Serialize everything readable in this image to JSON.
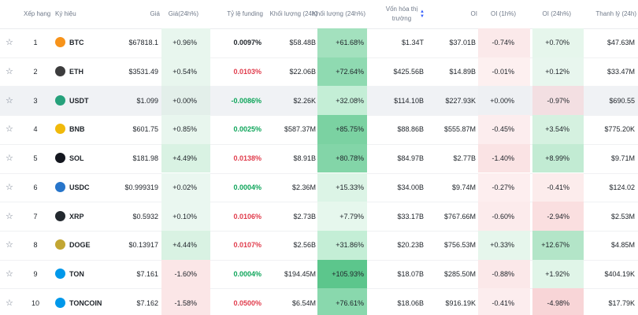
{
  "headers": [
    "Xếp hạng",
    "Ký hiệu",
    "Giá",
    "Giá(24h%)",
    "Tỷ lệ funding",
    "Khối lượng (24h)",
    "Khối lượng (24h%)",
    "Vốn hóa thị trường",
    "OI",
    "OI (1h%)",
    "OI (24h%)",
    "Thanh lý (24h)"
  ],
  "rows": [
    {
      "rank": "1",
      "symbol": "BTC",
      "icon_color": "#f7931a",
      "price": "$67818.1",
      "price_24h": "+0.96%",
      "funding": "0.0097%",
      "funding_color": "#1e2329",
      "volume": "$58.48B",
      "volume_24h": "+61.68%",
      "market_cap": "$1.34T",
      "oi": "$37.01B",
      "oi_1h": "-0.74%",
      "oi_24h": "+0.70%",
      "liquidation": "$47.63M",
      "heat": {
        "price_24h": "#e8f6ee",
        "volume_24h": "#a3e1be",
        "oi_1h": "#fbe9ea",
        "oi_24h": "#e6f6ec"
      }
    },
    {
      "rank": "2",
      "symbol": "ETH",
      "icon_color": "#3c3c3d",
      "price": "$3531.49",
      "price_24h": "+0.54%",
      "funding": "0.0103%",
      "funding_color": "#e03c4c",
      "volume": "$22.06B",
      "volume_24h": "+72.64%",
      "market_cap": "$425.56B",
      "oi": "$14.89B",
      "oi_1h": "-0.01%",
      "oi_24h": "+0.12%",
      "liquidation": "$33.47M",
      "heat": {
        "price_24h": "#e8f6ee",
        "volume_24h": "#8fdab1",
        "oi_1h": "#fdf0f0",
        "oi_24h": "#e8f6ee"
      }
    },
    {
      "rank": "3",
      "symbol": "USDT",
      "icon_color": "#26a17b",
      "price": "$1.099",
      "price_24h": "+0.00%",
      "funding": "-0.0086%",
      "funding_color": "#0ea55a",
      "volume": "$2.26K",
      "volume_24h": "+32.08%",
      "market_cap": "$114.10B",
      "oi": "$227.93K",
      "oi_1h": "+0.00%",
      "oi_24h": "-0.97%",
      "liquidation": "$690.55",
      "heat": {
        "price_24h": "#e3efea",
        "volume_24h": "#c4eed6",
        "oi_1h": "#eef0f3",
        "oi_24h": "#f3dfe2"
      }
    },
    {
      "rank": "4",
      "symbol": "BNB",
      "icon_color": "#f0b90b",
      "price": "$601.75",
      "price_24h": "+0.85%",
      "funding": "0.0025%",
      "funding_color": "#0ea55a",
      "volume": "$587.37M",
      "volume_24h": "+85.75%",
      "market_cap": "$88.86B",
      "oi": "$555.87M",
      "oi_1h": "-0.45%",
      "oi_24h": "+3.54%",
      "liquidation": "$775.20K",
      "heat": {
        "price_24h": "#e8f6ee",
        "volume_24h": "#7bd2a2",
        "oi_1h": "#fcedee",
        "oi_24h": "#d5f1e0"
      }
    },
    {
      "rank": "5",
      "symbol": "SOL",
      "icon_color": "#14171f",
      "price": "$181.98",
      "price_24h": "+4.49%",
      "funding": "0.0138%",
      "funding_color": "#e03c4c",
      "volume": "$8.91B",
      "volume_24h": "+80.78%",
      "market_cap": "$84.97B",
      "oi": "$2.77B",
      "oi_1h": "-1.40%",
      "oi_24h": "+8.99%",
      "liquidation": "$9.71M",
      "heat": {
        "price_24h": "#d9f2e3",
        "volume_24h": "#83d5a8",
        "oi_1h": "#fae3e4",
        "oi_24h": "#c2ebd3"
      }
    },
    {
      "rank": "6",
      "symbol": "USDC",
      "icon_color": "#2775ca",
      "price": "$0.999319",
      "price_24h": "+0.02%",
      "funding": "0.0004%",
      "funding_color": "#0ea55a",
      "volume": "$2.36M",
      "volume_24h": "+15.33%",
      "market_cap": "$34.00B",
      "oi": "$9.74M",
      "oi_1h": "-0.27%",
      "oi_24h": "-0.41%",
      "liquidation": "$124.02",
      "heat": {
        "price_24h": "#eaf7f0",
        "volume_24h": "#dcf4e6",
        "oi_1h": "#fdeeef",
        "oi_24h": "#fcecec"
      }
    },
    {
      "rank": "7",
      "symbol": "XRP",
      "icon_color": "#23292f",
      "price": "$0.5932",
      "price_24h": "+0.10%",
      "funding": "0.0106%",
      "funding_color": "#e03c4c",
      "volume": "$2.73B",
      "volume_24h": "+7.79%",
      "market_cap": "$33.17B",
      "oi": "$767.66M",
      "oi_1h": "-0.60%",
      "oi_24h": "-2.94%",
      "liquidation": "$2.53M",
      "heat": {
        "price_24h": "#eaf7f0",
        "volume_24h": "#e6f7ed",
        "oi_1h": "#fcebec",
        "oi_24h": "#fadfe0"
      }
    },
    {
      "rank": "8",
      "symbol": "DOGE",
      "icon_color": "#c2a633",
      "price": "$0.13917",
      "price_24h": "+4.44%",
      "funding": "0.0107%",
      "funding_color": "#e03c4c",
      "volume": "$2.56B",
      "volume_24h": "+31.86%",
      "market_cap": "$20.23B",
      "oi": "$756.53M",
      "oi_1h": "+0.33%",
      "oi_24h": "+12.67%",
      "liquidation": "$4.85M",
      "heat": {
        "price_24h": "#d9f2e3",
        "volume_24h": "#c4eed6",
        "oi_1h": "#e6f6ec",
        "oi_24h": "#b3e5c8"
      }
    },
    {
      "rank": "9",
      "symbol": "TON",
      "icon_color": "#0098ea",
      "price": "$7.161",
      "price_24h": "-1.60%",
      "funding": "0.0004%",
      "funding_color": "#0ea55a",
      "volume": "$194.45M",
      "volume_24h": "+105.93%",
      "market_cap": "$18.07B",
      "oi": "$285.50M",
      "oi_1h": "-0.88%",
      "oi_24h": "+1.92%",
      "liquidation": "$404.19K",
      "heat": {
        "price_24h": "#fbe6e7",
        "volume_24h": "#5cc68c",
        "oi_1h": "#fbe8e9",
        "oi_24h": "#e0f5e8"
      }
    },
    {
      "rank": "10",
      "symbol": "TONCOIN",
      "icon_color": "#0098ea",
      "price": "$7.162",
      "price_24h": "-1.58%",
      "funding": "0.0500%",
      "funding_color": "#e03c4c",
      "volume": "$6.54M",
      "volume_24h": "+76.61%",
      "market_cap": "$18.06B",
      "oi": "$916.19K",
      "oi_1h": "-0.41%",
      "oi_24h": "-4.98%",
      "liquidation": "$17.79K",
      "heat": {
        "price_24h": "#fbe6e7",
        "volume_24h": "#89d8ad",
        "oi_1h": "#fcedee",
        "oi_24h": "#f8d5d7"
      }
    }
  ]
}
